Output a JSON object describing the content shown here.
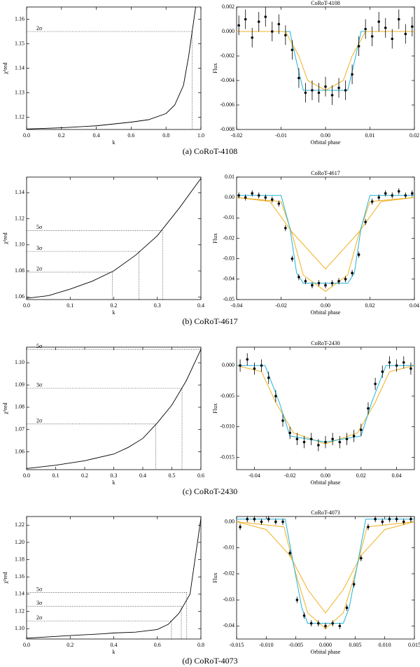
{
  "chart_data": [
    {
      "type": "line",
      "xlabel": "k",
      "ylabel": "χ²red",
      "x": [
        0,
        0.2,
        0.4,
        0.6,
        0.7,
        0.8,
        0.85,
        0.9,
        0.93,
        0.95,
        0.97
      ],
      "values": [
        1.1152,
        1.1157,
        1.1165,
        1.118,
        1.119,
        1.1215,
        1.125,
        1.133,
        1.145,
        1.155,
        1.165
      ],
      "color": "#000000",
      "xlim": [
        0,
        1
      ],
      "ylim": [
        1.115,
        1.165
      ],
      "xticks": [
        {
          "value": 0,
          "label": "0.0"
        },
        0.2,
        0.4,
        0.6,
        0.8,
        {
          "value": 1,
          "label": "1.0"
        }
      ],
      "yticks": [
        1.12,
        1.13,
        1.14,
        1.15,
        1.16
      ],
      "levels": [
        {
          "label": "2σ",
          "value": 1.155,
          "k": 0.95
        }
      ]
    },
    {
      "type": "scatter",
      "title": "CoRoT-4108",
      "xlabel": "Orbital phase",
      "ylabel": "Flux",
      "xlim": [
        -0.02,
        0.02
      ],
      "ylim": [
        -0.008,
        0.002
      ],
      "xticks": [
        -0.02,
        -0.01,
        {
          "value": 0,
          "label": "0.00"
        },
        0.01,
        0.02
      ],
      "yticks": [
        -0.008,
        -0.006,
        -0.004,
        -0.002,
        {
          "value": 0,
          "label": "0.000"
        },
        0.002
      ],
      "points": {
        "color": "#000000",
        "x": [
          -0.0195,
          -0.018,
          -0.0165,
          -0.015,
          -0.0135,
          -0.012,
          -0.0105,
          -0.009,
          -0.0075,
          -0.006,
          -0.0045,
          -0.003,
          -0.0015,
          0,
          0.0015,
          0.003,
          0.0045,
          0.006,
          0.0075,
          0.009,
          0.0105,
          0.012,
          0.0135,
          0.015,
          0.0165,
          0.018,
          0.0195
        ],
        "values": [
          0.0005,
          0.001,
          -0.0005,
          0.0008,
          0.0012,
          0,
          0.0006,
          -0.0003,
          -0.0015,
          -0.0038,
          -0.005,
          -0.0048,
          -0.005,
          -0.0045,
          -0.0052,
          -0.0046,
          -0.0048,
          -0.0035,
          -0.0012,
          0.0002,
          -0.0004,
          0.0008,
          0.0003,
          -0.0006,
          0.001,
          -0.0002,
          0.0004
        ],
        "errors": [
          0.0008,
          0.0008,
          0.0008,
          0.0008,
          0.0008,
          0.0008,
          0.0008,
          0.0008,
          0.0008,
          0.0008,
          0.0008,
          0.0008,
          0.0008,
          0.0008,
          0.0008,
          0.0008,
          0.0008,
          0.0008,
          0.0008,
          0.0008,
          0.0008,
          0.0008,
          0.0008,
          0.0008,
          0.0008,
          0.0008,
          0.0008
        ]
      },
      "models": [
        {
          "color": "#1fb4d8",
          "x": [
            -0.02,
            -0.008,
            -0.0065,
            -0.005,
            0.005,
            0.0065,
            0.008,
            0.02
          ],
          "values": [
            0,
            0,
            -0.0025,
            -0.0048,
            -0.0048,
            -0.0025,
            0,
            0
          ]
        },
        {
          "color": "#f0b020",
          "x": [
            -0.02,
            -0.009,
            -0.006,
            -0.004,
            0,
            0.004,
            0.006,
            0.009,
            0.02
          ],
          "values": [
            0,
            0,
            -0.002,
            -0.004,
            -0.0048,
            -0.004,
            -0.002,
            0,
            0
          ]
        }
      ]
    },
    {
      "type": "line",
      "xlabel": "k",
      "ylabel": "χ²red",
      "x": [
        0,
        0.05,
        0.1,
        0.15,
        0.2,
        0.25,
        0.3,
        0.35,
        0.4
      ],
      "values": [
        1.059,
        1.061,
        1.066,
        1.072,
        1.08,
        1.092,
        1.107,
        1.128,
        1.151
      ],
      "color": "#000000",
      "xlim": [
        0,
        0.4
      ],
      "ylim": [
        1.058,
        1.152
      ],
      "xticks": [
        {
          "value": 0,
          "label": "0.0"
        },
        0.1,
        0.2,
        0.3,
        0.4
      ],
      "yticks": [
        1.06,
        1.08,
        {
          "value": 1.1,
          "label": "1.10"
        },
        1.12,
        1.14
      ],
      "levels": [
        {
          "label": "2σ",
          "value": 1.079,
          "k": 0.197
        },
        {
          "label": "3σ",
          "value": 1.095,
          "k": 0.258
        },
        {
          "label": "5σ",
          "value": 1.111,
          "k": 0.312
        }
      ]
    },
    {
      "type": "scatter",
      "title": "CoRoT-4617",
      "xlabel": "Orbital phase",
      "ylabel": "Flux",
      "xlim": [
        -0.04,
        0.04
      ],
      "ylim": [
        -0.05,
        0.01
      ],
      "xticks": [
        -0.04,
        -0.02,
        {
          "value": 0,
          "label": "0.00"
        },
        0.02,
        0.04
      ],
      "yticks": [
        -0.05,
        -0.04,
        -0.03,
        -0.02,
        -0.01,
        {
          "value": 0,
          "label": "0.00"
        },
        0.01
      ],
      "points": {
        "color": "#000000",
        "x": [
          -0.039,
          -0.036,
          -0.033,
          -0.03,
          -0.027,
          -0.024,
          -0.021,
          -0.018,
          -0.015,
          -0.012,
          -0.009,
          -0.006,
          -0.003,
          0,
          0.003,
          0.006,
          0.009,
          0.012,
          0.015,
          0.018,
          0.021,
          0.024,
          0.027,
          0.03,
          0.033,
          0.036,
          0.039
        ],
        "values": [
          0.001,
          0,
          0.002,
          0.001,
          0,
          -0.001,
          -0.003,
          -0.015,
          -0.03,
          -0.039,
          -0.041,
          -0.043,
          -0.042,
          -0.043,
          -0.042,
          -0.041,
          -0.04,
          -0.037,
          -0.028,
          -0.012,
          -0.002,
          0,
          0.002,
          0.001,
          0.003,
          0.001,
          0.002
        ],
        "errors": [
          0.0015,
          0.0015,
          0.0015,
          0.0015,
          0.0015,
          0.0015,
          0.0015,
          0.0015,
          0.0015,
          0.0015,
          0.0015,
          0.0015,
          0.0015,
          0.0015,
          0.0015,
          0.0015,
          0.0015,
          0.0015,
          0.0015,
          0.0015,
          0.0015,
          0.0015,
          0.0015,
          0.0015,
          0.0015,
          0.0015,
          0.0015
        ]
      },
      "models": [
        {
          "color": "#f0b020",
          "x": [
            -0.04,
            -0.025,
            -0.015,
            0,
            0.015,
            0.025,
            0.04
          ],
          "values": [
            0,
            -0.002,
            -0.017,
            -0.035,
            -0.017,
            -0.002,
            0
          ]
        },
        {
          "color": "#f0b020",
          "x": [
            -0.04,
            -0.02,
            -0.015,
            -0.01,
            0,
            0.01,
            0.015,
            0.02,
            0.04
          ],
          "values": [
            0,
            -0.002,
            -0.018,
            -0.038,
            -0.046,
            -0.038,
            -0.018,
            -0.002,
            0
          ]
        },
        {
          "color": "#1fb4d8",
          "x": [
            -0.04,
            -0.02,
            -0.016,
            -0.013,
            -0.01,
            0.01,
            0.013,
            0.016,
            0.02,
            0.04
          ],
          "values": [
            0.001,
            0.001,
            -0.015,
            -0.037,
            -0.042,
            -0.042,
            -0.037,
            -0.015,
            0.001,
            0.001
          ]
        }
      ]
    },
    {
      "type": "line",
      "xlabel": "k",
      "ylabel": "χ²red",
      "x": [
        0,
        0.1,
        0.2,
        0.3,
        0.35,
        0.4,
        0.45,
        0.5,
        0.55,
        0.6
      ],
      "values": [
        1.0525,
        1.054,
        1.056,
        1.059,
        1.062,
        1.066,
        1.073,
        1.081,
        1.092,
        1.106
      ],
      "color": "#000000",
      "xlim": [
        0,
        0.6
      ],
      "ylim": [
        1.052,
        1.107
      ],
      "xticks": [
        {
          "value": 0,
          "label": "0.0"
        },
        0.1,
        0.2,
        0.3,
        0.4,
        0.5,
        0.6
      ],
      "yticks": [
        1.06,
        1.07,
        1.08,
        1.09,
        {
          "value": 1.1,
          "label": "1.10"
        }
      ],
      "levels": [
        {
          "label": "2σ",
          "value": 1.0725,
          "k": 0.445
        },
        {
          "label": "3σ",
          "value": 1.0885,
          "k": 0.535
        },
        {
          "label": "5σ",
          "value": 1.106,
          "k": 0.6
        }
      ]
    },
    {
      "type": "scatter",
      "title": "CoRoT-2430",
      "xlabel": "Orbital phase",
      "ylabel": "Flux",
      "xlim": [
        -0.05,
        0.05
      ],
      "ylim": [
        -0.017,
        0.003
      ],
      "xticks": [
        -0.04,
        -0.02,
        {
          "value": 0,
          "label": "0.00"
        },
        0.02,
        0.04
      ],
      "yticks": [
        -0.015,
        {
          "value": -0.01,
          "label": "-0.010"
        },
        {
          "value": -0.005,
          "label": "-0.005"
        },
        {
          "value": 0,
          "label": "0.000"
        }
      ],
      "points": {
        "color": "#000000",
        "x": [
          -0.048,
          -0.044,
          -0.04,
          -0.036,
          -0.032,
          -0.028,
          -0.024,
          -0.02,
          -0.016,
          -0.012,
          -0.008,
          -0.004,
          0,
          0.004,
          0.008,
          0.012,
          0.016,
          0.02,
          0.024,
          0.028,
          0.032,
          0.036,
          0.04,
          0.044,
          0.048
        ],
        "values": [
          0,
          0.001,
          -0.0005,
          0,
          -0.002,
          -0.005,
          -0.009,
          -0.011,
          -0.012,
          -0.0125,
          -0.012,
          -0.013,
          -0.0125,
          -0.012,
          -0.0125,
          -0.012,
          -0.0115,
          -0.0105,
          -0.007,
          -0.003,
          -0.001,
          0.0005,
          0,
          0.0005,
          -0.0005
        ],
        "errors": [
          0.001,
          0.001,
          0.001,
          0.001,
          0.001,
          0.001,
          0.001,
          0.001,
          0.001,
          0.001,
          0.001,
          0.001,
          0.001,
          0.001,
          0.001,
          0.001,
          0.001,
          0.001,
          0.001,
          0.001,
          0.001,
          0.001,
          0.001,
          0.001,
          0.001
        ]
      },
      "models": [
        {
          "color": "#f0b020",
          "x": [
            -0.05,
            -0.036,
            -0.028,
            -0.018,
            0,
            0.018,
            0.028,
            0.036,
            0.05
          ],
          "values": [
            0,
            -0.001,
            -0.006,
            -0.011,
            -0.0128,
            -0.011,
            -0.006,
            -0.001,
            0
          ]
        },
        {
          "color": "#1fb4d8",
          "x": [
            -0.05,
            -0.034,
            -0.026,
            -0.02,
            0,
            0.02,
            0.026,
            0.034,
            0.05
          ],
          "values": [
            0,
            0,
            -0.006,
            -0.0115,
            -0.0125,
            -0.0115,
            -0.006,
            0,
            0
          ]
        }
      ]
    },
    {
      "type": "line",
      "xlabel": "k",
      "ylabel": "χ²red",
      "x": [
        0,
        0.2,
        0.35,
        0.4,
        0.5,
        0.6,
        0.65,
        0.7,
        0.75,
        0.8
      ],
      "values": [
        1.089,
        1.092,
        1.094,
        1.095,
        1.096,
        1.099,
        1.105,
        1.118,
        1.14,
        1.228
      ],
      "color": "#000000",
      "xlim": [
        0,
        0.8
      ],
      "ylim": [
        1.088,
        1.23
      ],
      "xticks": [
        {
          "value": 0,
          "label": "0.0"
        },
        0.2,
        0.4,
        0.6,
        0.8
      ],
      "yticks": [
        {
          "value": 1.1,
          "label": "1.10"
        },
        1.12,
        1.14,
        1.16,
        1.18,
        {
          "value": 1.2,
          "label": "1.20"
        },
        1.22
      ],
      "levels": [
        {
          "label": "2σ",
          "value": 1.109,
          "k": 0.665
        },
        {
          "label": "3σ",
          "value": 1.126,
          "k": 0.71
        },
        {
          "label": "5σ",
          "value": 1.142,
          "k": 0.735
        }
      ]
    },
    {
      "type": "scatter",
      "title": "CoRoT-4073",
      "xlabel": "Orbital phase",
      "ylabel": "Flux",
      "xlim": [
        -0.015,
        0.015
      ],
      "ylim": [
        -0.045,
        0.002
      ],
      "xticks": [
        -0.015,
        {
          "value": -0.01,
          "label": "-0.010"
        },
        {
          "value": -0.005,
          "label": "-0.005"
        },
        {
          "value": 0,
          "label": "0.000"
        },
        0.005,
        {
          "value": 0.01,
          "label": "0.010"
        },
        0.015
      ],
      "yticks": [
        -0.04,
        -0.03,
        -0.02,
        -0.01,
        {
          "value": 0,
          "label": "0.00"
        }
      ],
      "points": {
        "color": "#000000",
        "x": [
          -0.0144,
          -0.0132,
          -0.012,
          -0.0108,
          -0.0096,
          -0.0084,
          -0.0072,
          -0.006,
          -0.0048,
          -0.0036,
          -0.0024,
          -0.0012,
          0,
          0.0012,
          0.0024,
          0.0036,
          0.0048,
          0.006,
          0.0072,
          0.0084,
          0.0096,
          0.0108,
          0.012,
          0.0132,
          0.0144
        ],
        "values": [
          -0.002,
          0.001,
          0.001,
          0,
          0.001,
          0,
          0,
          -0.012,
          -0.03,
          -0.036,
          -0.039,
          -0.039,
          -0.04,
          -0.039,
          -0.04,
          -0.033,
          -0.024,
          -0.014,
          -0.002,
          0.001,
          0,
          0.001,
          0.001,
          0,
          0.001
        ],
        "errors": [
          0.0012,
          0.0012,
          0.0012,
          0.0012,
          0.0012,
          0.0012,
          0.0012,
          0.0012,
          0.0012,
          0.0012,
          0.0012,
          0.0012,
          0.0012,
          0.0012,
          0.0012,
          0.0012,
          0.0012,
          0.0012,
          0.0012,
          0.0012,
          0.0012,
          0.0012,
          0.0012,
          0.0012,
          0.0012
        ]
      },
      "models": [
        {
          "color": "#f0b020",
          "x": [
            -0.015,
            -0.01,
            -0.006,
            -0.003,
            0,
            0.003,
            0.006,
            0.01,
            0.015
          ],
          "values": [
            0,
            -0.003,
            -0.013,
            -0.026,
            -0.035,
            -0.026,
            -0.013,
            -0.003,
            0
          ]
        },
        {
          "color": "#f0b020",
          "x": [
            -0.015,
            -0.007,
            -0.005,
            -0.003,
            0,
            0.003,
            0.005,
            0.007,
            0.015
          ],
          "values": [
            0,
            -0.002,
            -0.02,
            -0.035,
            -0.041,
            -0.035,
            -0.02,
            -0.002,
            0
          ]
        },
        {
          "color": "#1fb4d8",
          "x": [
            -0.015,
            -0.0068,
            -0.0055,
            -0.004,
            -0.003,
            0.003,
            0.004,
            0.0055,
            0.0068,
            0.015
          ],
          "values": [
            0.001,
            0.001,
            -0.015,
            -0.033,
            -0.039,
            -0.039,
            -0.033,
            -0.015,
            0.001,
            0.001
          ]
        }
      ]
    }
  ],
  "captions": [
    "(a)  CoRoT-4108",
    "(b)  CoRoT-4617",
    "(c)  CoRoT-2430",
    "(d)  CoRoT-4073"
  ]
}
